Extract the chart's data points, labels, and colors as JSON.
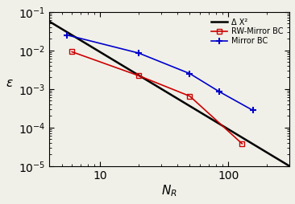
{
  "title": "",
  "xlabel": "N_R",
  "ylabel": "ε",
  "xlim": [
    4,
    300
  ],
  "ylim": [
    1e-05,
    0.1
  ],
  "background_color": "#f0f0e8",
  "black_line": {
    "label": "Δ X²",
    "color": "#000000",
    "x": [
      4.0,
      300.0
    ],
    "C": 0.9
  },
  "rw_mirror": {
    "label": "RW-Mirror BC",
    "color": "#cc0000",
    "x": [
      6.0,
      20.0,
      50.0,
      128.0
    ],
    "y": [
      0.0092,
      0.0022,
      0.00065,
      3.8e-05
    ]
  },
  "mirror": {
    "label": "Mirror BC",
    "color": "#0000cc",
    "x": [
      5.5,
      20.0,
      50.0,
      85.0,
      155.0
    ],
    "y": [
      0.025,
      0.0085,
      0.0025,
      0.00085,
      0.00028
    ]
  }
}
